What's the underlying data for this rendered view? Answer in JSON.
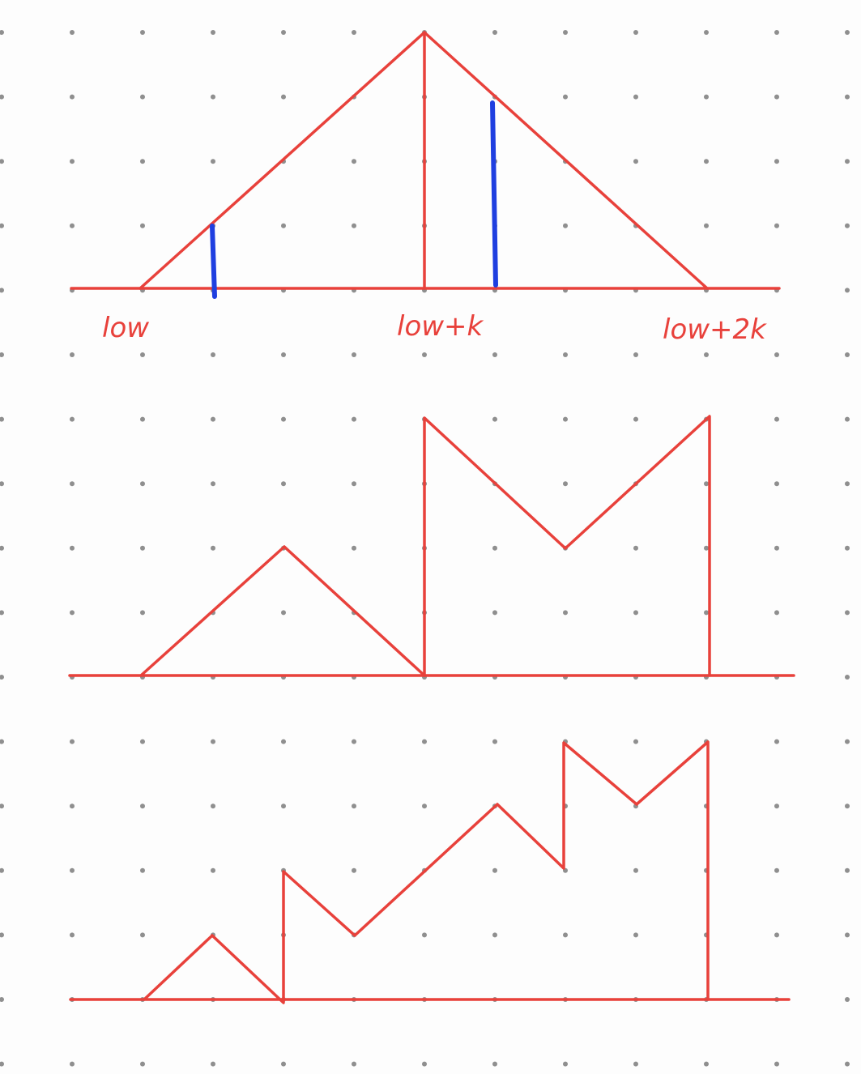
{
  "diagram": {
    "colors": {
      "stroke": "#e8413b",
      "highlight": "#1f3fe0",
      "grid": "#8f8f8f",
      "background": "#fdfdfd"
    },
    "labels": {
      "low": "low",
      "mid": "low+k",
      "high": "low+2k"
    }
  }
}
